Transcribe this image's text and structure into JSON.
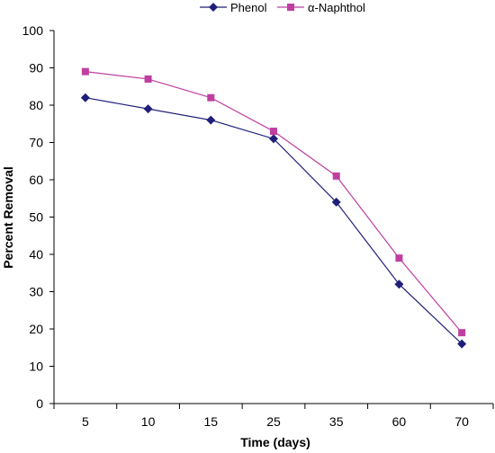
{
  "chart_data": {
    "type": "line",
    "title": "",
    "xlabel": "Time (days)",
    "ylabel": "Percent Removal",
    "categories": [
      "5",
      "10",
      "15",
      "25",
      "35",
      "60",
      "70"
    ],
    "ylim": [
      0,
      100
    ],
    "yticks": [
      0,
      10,
      20,
      30,
      40,
      50,
      60,
      70,
      80,
      90,
      100
    ],
    "grid": false,
    "legend_position": "top",
    "series": [
      {
        "name": "Phenol",
        "values": [
          82,
          79,
          76,
          71,
          54,
          32,
          16
        ],
        "color": "#1f1f7a",
        "marker": "diamond"
      },
      {
        "name": "α-Naphthol",
        "values": [
          89,
          87,
          82,
          73,
          61,
          39,
          19
        ],
        "color": "#bf3fa0",
        "marker": "square"
      }
    ]
  }
}
